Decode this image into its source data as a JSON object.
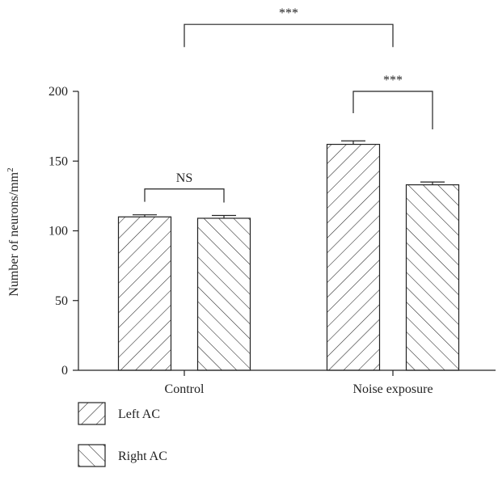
{
  "chart_data": {
    "type": "bar",
    "categories": [
      "Control",
      "Noise exposure"
    ],
    "ylabel": "Number of neurons/mm",
    "ylabel_superscript": "2",
    "ylim": [
      0,
      200
    ],
    "yticks": [
      "0",
      "50",
      "100",
      "150",
      "200"
    ],
    "series": [
      {
        "name": "Left AC",
        "values": [
          110,
          162
        ],
        "errors": [
          1.5,
          2.5
        ],
        "pattern": "forward-hatch"
      },
      {
        "name": "Right AC",
        "values": [
          109,
          133
        ],
        "errors": [
          2,
          2
        ],
        "pattern": "backward-hatch"
      }
    ],
    "annotations": [
      {
        "label": "NS",
        "between": [
          [
            0,
            0
          ],
          [
            0,
            1
          ]
        ],
        "y": 130
      },
      {
        "label": "***",
        "between": [
          [
            1,
            0
          ],
          [
            1,
            1
          ]
        ],
        "y": 200
      },
      {
        "label": "***",
        "between_groups": [
          0,
          1
        ],
        "y": 248
      }
    ],
    "legend_position": "bottom-left",
    "grid": false
  }
}
